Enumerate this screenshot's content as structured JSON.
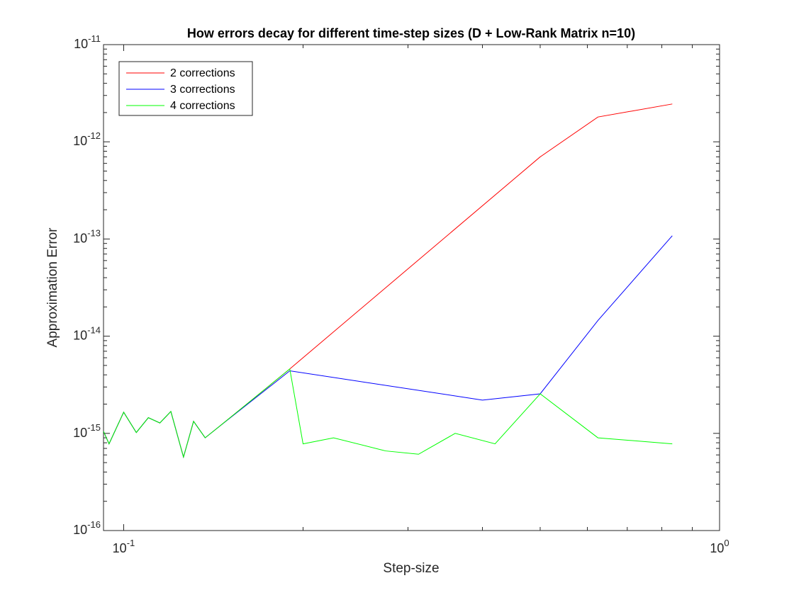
{
  "chart_data": {
    "type": "line",
    "title": "How errors decay for different time-step sizes (D + Low-Rank Matrix n=10)",
    "xlabel": "Step-size",
    "ylabel": "Approximation Error",
    "xscale": "log",
    "yscale": "log",
    "xlim": [
      0.0925,
      1.0
    ],
    "ylim": [
      1e-16,
      1e-11
    ],
    "x_ticks": [
      {
        "base": "10",
        "exp": "-1"
      },
      {
        "base": "10",
        "exp": "0"
      }
    ],
    "y_ticks": [
      {
        "base": "10",
        "exp": "-16"
      },
      {
        "base": "10",
        "exp": "-15"
      },
      {
        "base": "10",
        "exp": "-14"
      },
      {
        "base": "10",
        "exp": "-13"
      },
      {
        "base": "10",
        "exp": "-12"
      },
      {
        "base": "10",
        "exp": "-11"
      }
    ],
    "grid": false,
    "legend_position": "top-left",
    "series": [
      {
        "name": "2 corrections",
        "color": "#ff0000",
        "x": [
          0.0925,
          0.0945,
          0.1,
          0.105,
          0.11,
          0.115,
          0.12,
          0.126,
          0.131,
          0.137,
          0.144,
          0.19,
          0.5,
          0.625,
          0.833
        ],
        "y": [
          1.05e-15,
          7.8e-16,
          1.65e-15,
          1.02e-15,
          1.45e-15,
          1.28e-15,
          1.68e-15,
          5.7e-16,
          1.33e-15,
          9e-16,
          1.15e-15,
          4.6e-15,
          7e-13,
          1.8e-12,
          2.45e-12
        ]
      },
      {
        "name": "3 corrections",
        "color": "#0000ff",
        "x": [
          0.0925,
          0.0945,
          0.1,
          0.105,
          0.11,
          0.115,
          0.12,
          0.126,
          0.131,
          0.137,
          0.144,
          0.19,
          0.4,
          0.5,
          0.625,
          0.833
        ],
        "y": [
          1.05e-15,
          7.8e-16,
          1.65e-15,
          1.02e-15,
          1.45e-15,
          1.28e-15,
          1.68e-15,
          5.7e-16,
          1.33e-15,
          9e-16,
          1.15e-15,
          4.4e-15,
          2.2e-15,
          2.55e-15,
          1.45e-14,
          1.08e-13
        ]
      },
      {
        "name": "4 corrections",
        "color": "#00ff00",
        "x": [
          0.0925,
          0.0945,
          0.1,
          0.105,
          0.11,
          0.115,
          0.12,
          0.126,
          0.131,
          0.137,
          0.144,
          0.19,
          0.2,
          0.225,
          0.275,
          0.3125,
          0.36,
          0.42,
          0.5,
          0.625,
          0.833
        ],
        "y": [
          1.05e-15,
          7.8e-16,
          1.65e-15,
          1.02e-15,
          1.45e-15,
          1.28e-15,
          1.68e-15,
          5.7e-16,
          1.33e-15,
          9e-16,
          1.15e-15,
          4.6e-15,
          7.8e-16,
          9e-16,
          6.6e-16,
          6.1e-16,
          1e-15,
          7.8e-16,
          2.55e-15,
          9e-16,
          7.8e-16
        ]
      }
    ]
  }
}
